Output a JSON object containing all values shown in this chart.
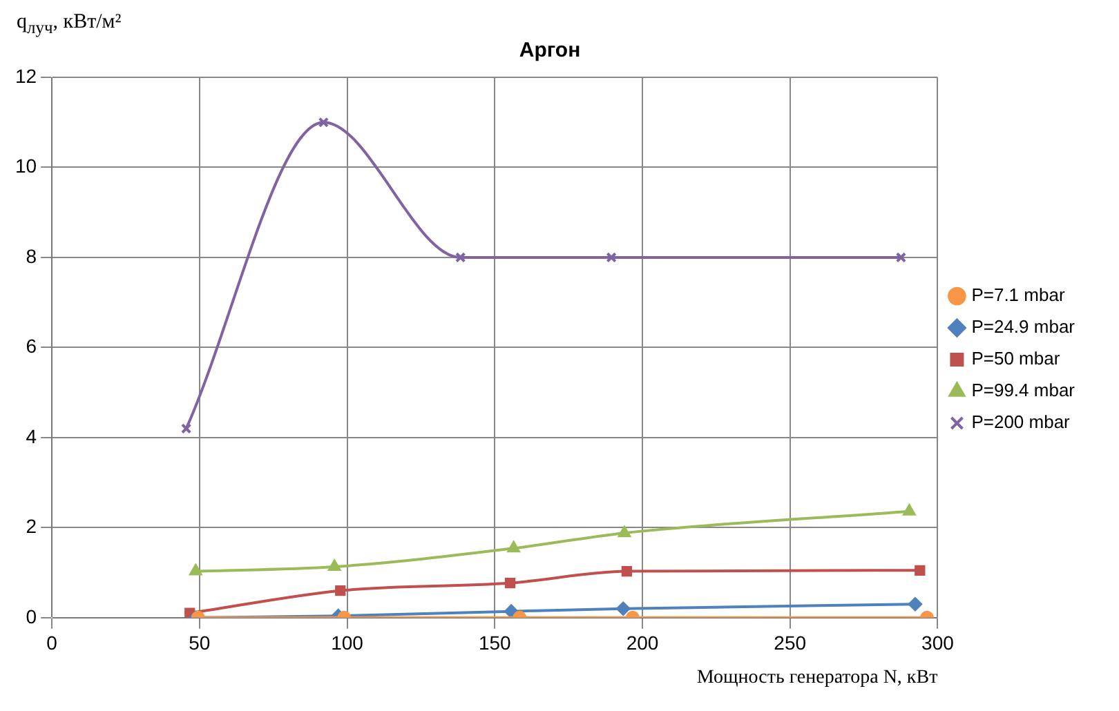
{
  "chart_data": {
    "type": "line",
    "title": "Аргон",
    "xlabel": "Мощность генератора N, кВт",
    "ylabel": "q$_{луч}$, кВт/м²",
    "xlim": [
      0,
      300
    ],
    "xticks": [
      0,
      50,
      100,
      150,
      200,
      250,
      300
    ],
    "ylim": [
      0,
      12
    ],
    "yticks": [
      0,
      2,
      4,
      6,
      8,
      10,
      12
    ],
    "grid": true,
    "legend": "right",
    "series": [
      {
        "name": "P=7.1 mbar",
        "color": "#f79646",
        "marker": "circle",
        "x": [
          49.5,
          99,
          158.4,
          196.7,
          296.4
        ],
        "values": [
          0,
          0,
          0,
          0,
          0
        ]
      },
      {
        "name": "P=24.9 mbar",
        "color": "#4f81bd",
        "marker": "diamond",
        "x": [
          48.7,
          97,
          155.6,
          193.5,
          292.4
        ],
        "values": [
          0,
          0.04,
          0.14,
          0.2,
          0.3
        ]
      },
      {
        "name": "P=50 mbar",
        "color": "#c0504d",
        "marker": "square",
        "x": [
          46.7,
          97.7,
          155.2,
          194.7,
          294
        ],
        "values": [
          0.1,
          0.6,
          0.77,
          1.03,
          1.05
        ]
      },
      {
        "name": "P=99.4 mbar",
        "color": "#9bbb59",
        "marker": "triangle",
        "x": [
          48.7,
          95.7,
          156.4,
          193.9,
          290.4
        ],
        "values": [
          1.03,
          1.13,
          1.54,
          1.88,
          2.36
        ]
      },
      {
        "name": "P=200 mbar",
        "color": "#8064a2",
        "marker": "cross",
        "x": [
          45.5,
          92,
          138.4,
          189.5,
          287.6
        ],
        "values": [
          4.2,
          11,
          8,
          8,
          8
        ]
      }
    ]
  }
}
